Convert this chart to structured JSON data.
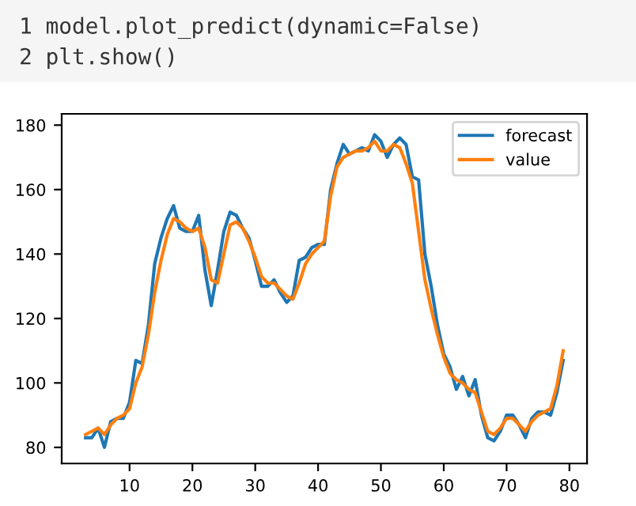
{
  "chart_data": {
    "type": "line",
    "annotations": [
      "1 model.plot_predict(dynamic=False)",
      "2 plt.show()"
    ],
    "x": [
      3,
      4,
      5,
      6,
      7,
      8,
      9,
      10,
      11,
      12,
      13,
      14,
      15,
      16,
      17,
      18,
      19,
      20,
      21,
      22,
      23,
      24,
      25,
      26,
      27,
      28,
      29,
      30,
      31,
      32,
      33,
      34,
      35,
      36,
      37,
      38,
      39,
      40,
      41,
      42,
      43,
      44,
      45,
      46,
      47,
      48,
      49,
      50,
      51,
      52,
      53,
      54,
      55,
      56,
      57,
      58,
      59,
      60,
      61,
      62,
      63,
      64,
      65,
      66,
      67,
      68,
      69,
      70,
      71,
      72,
      73,
      74,
      75,
      76,
      77,
      78,
      79
    ],
    "series": [
      {
        "name": "forecast",
        "color": "#1f77b4",
        "values": [
          83,
          83,
          86,
          80,
          88,
          89,
          89,
          94,
          107,
          106,
          118,
          137,
          145,
          151,
          155,
          148,
          147,
          147,
          152,
          135,
          124,
          135,
          147,
          153,
          152,
          148,
          145,
          138,
          130,
          130,
          132,
          128,
          125,
          127,
          138,
          139,
          142,
          143,
          143,
          160,
          168,
          174,
          171,
          172,
          173,
          172,
          177,
          175,
          170,
          174,
          176,
          174,
          164,
          163,
          140,
          130,
          118,
          109,
          105,
          98,
          102,
          96,
          101,
          90,
          83,
          82,
          85,
          90,
          90,
          87,
          83,
          89,
          91,
          91,
          90,
          97,
          107
        ]
      },
      {
        "name": "value",
        "color": "#ff7f0e",
        "values": [
          84,
          85,
          86,
          84,
          87,
          89,
          90,
          92,
          100,
          105,
          115,
          128,
          138,
          146,
          151,
          150,
          148,
          147,
          148,
          142,
          132,
          131,
          140,
          149,
          150,
          148,
          144,
          139,
          133,
          131,
          131,
          129,
          127,
          126,
          131,
          137,
          140,
          142,
          144,
          158,
          167,
          170,
          171,
          172,
          172,
          173,
          175,
          172,
          172,
          174,
          173,
          168,
          162,
          147,
          132,
          123,
          115,
          108,
          103,
          101,
          100,
          98,
          97,
          91,
          85,
          84,
          86,
          89,
          89,
          87,
          85,
          88,
          90,
          91,
          92,
          99,
          110
        ]
      }
    ],
    "xlim": [
      -0.8,
      82.8
    ],
    "ylim": [
      75,
      183.5
    ],
    "xticks": [
      10,
      20,
      30,
      40,
      50,
      60,
      70,
      80
    ],
    "yticks": [
      80,
      100,
      120,
      140,
      160,
      180
    ],
    "grid": false,
    "legend": "top right"
  }
}
